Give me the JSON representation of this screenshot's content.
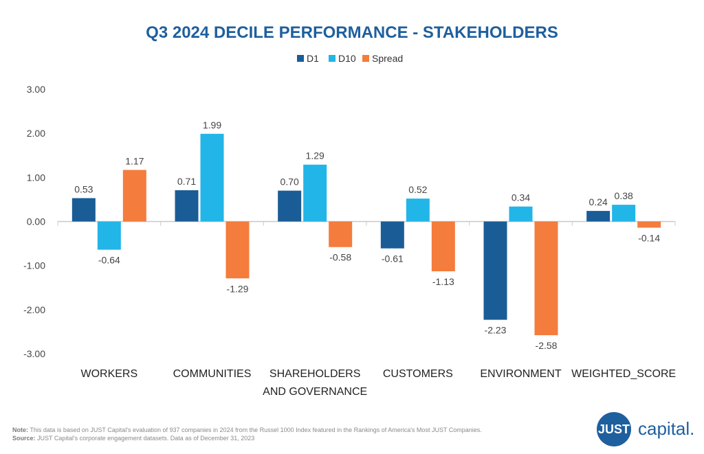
{
  "chart_data": {
    "type": "bar",
    "title": "Q3 2024 DECILE PERFORMANCE - STAKEHOLDERS",
    "categories": [
      [
        "WORKERS"
      ],
      [
        "COMMUNITIES"
      ],
      [
        "SHAREHOLDERS",
        "AND GOVERNANCE"
      ],
      [
        "CUSTOMERS"
      ],
      [
        "ENVIRONMENT"
      ],
      [
        "WEIGHTED_SCORE"
      ]
    ],
    "series": [
      {
        "name": "D1",
        "color": "#1a5d96",
        "values": [
          0.53,
          0.71,
          0.7,
          -0.61,
          -2.23,
          0.24
        ]
      },
      {
        "name": "D10",
        "color": "#22b5e8",
        "values": [
          -0.64,
          1.99,
          1.29,
          0.52,
          0.34,
          0.38
        ]
      },
      {
        "name": "Spread",
        "color": "#f47c3c",
        "values": [
          1.17,
          -1.29,
          -0.58,
          -1.13,
          -2.58,
          -0.14
        ]
      }
    ],
    "ylim": [
      -3,
      3
    ],
    "yticks": [
      "3.00",
      "2.00",
      "1.00",
      "0.00",
      "-1.00",
      "-2.00",
      "-3.00"
    ],
    "legend_position": "top-center",
    "xlabel": "",
    "ylabel": ""
  },
  "footer": {
    "note_label": "Note:",
    "note_text": "This data is based on JUST Capital's evaluation of 937 companies in 2024 from the Russel 1000 Index featured in the Rankings of America's Most JUST Companies.",
    "source_label": "Source:",
    "source_text": "JUST Capital's corporate engagement datasets. Data as of December 31, 2023"
  },
  "logo": {
    "mark": "JUST",
    "text": "capital."
  },
  "colors": {
    "title": "#1e5f9e",
    "text": "#333333",
    "axis": "#c8c8c8"
  }
}
